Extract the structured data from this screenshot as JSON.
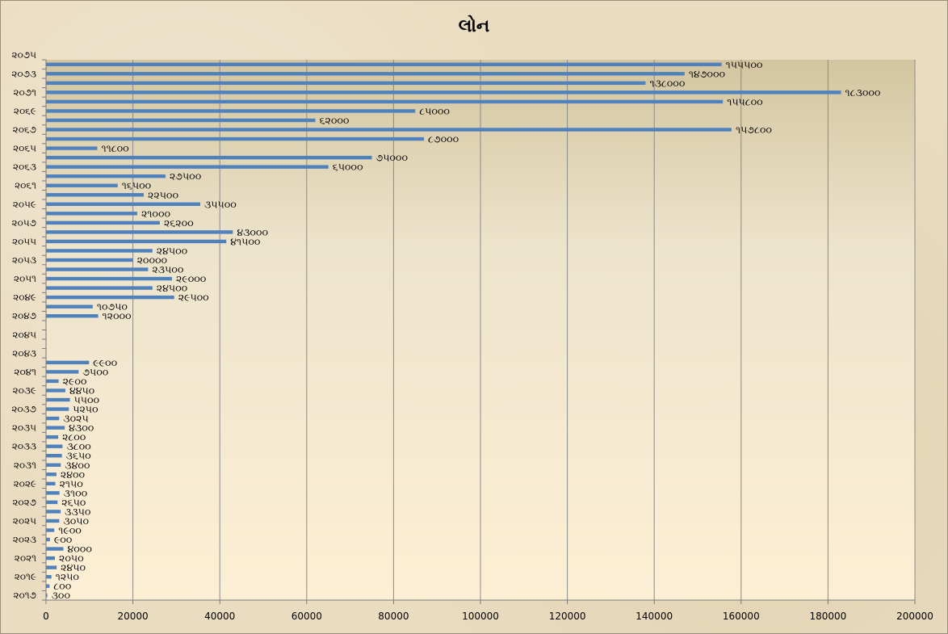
{
  "chart_data": {
    "type": "bar",
    "orientation": "horizontal",
    "title": "લોન",
    "xlim": [
      0,
      200000
    ],
    "x_tick_labels": [
      "0",
      "20000",
      "40000",
      "60000",
      "80000",
      "100000",
      "120000",
      "140000",
      "160000",
      "180000",
      "200000"
    ],
    "y_tick_labels": [
      "૨૦૧૭",
      "૨૦૧૯",
      "૨૦૨૧",
      "૨૦૨૩",
      "૨૦૨૫",
      "૨૦૨૭",
      "૨૦૨૯",
      "૨૦૩૧",
      "૨૦૩૩",
      "૨૦૩૫",
      "૨૦૩૭",
      "૨૦૩૯",
      "૨૦૪૧",
      "૨૦૪૩",
      "૨૦૪૫",
      "૨૦૪૭",
      "૨૦૪૯",
      "૨૦૫૧",
      "૨૦૫૩",
      "૨૦૫૫",
      "૨૦૫૭",
      "૨૦૫૯",
      "૨૦૬૧",
      "૨૦૬૩",
      "૨૦૬૫",
      "૨૦૬૭",
      "૨૦૬૯",
      "૨૦૭૧",
      "૨૦૭૩",
      "૨૦૭૫"
    ],
    "grid": "vertical",
    "bar_color": "#4f81bd",
    "series": [
      {
        "category": "૨૦૧૭",
        "value": 300,
        "label": "૩૦૦"
      },
      {
        "category": "૨૦૧૮",
        "value": 800,
        "label": "૮૦૦"
      },
      {
        "category": "૨૦૧૯",
        "value": 1250,
        "label": "૧૨૫૦"
      },
      {
        "category": "૨૦૨૦",
        "value": 2450,
        "label": "૨૪૫૦"
      },
      {
        "category": "૨૦૨૧",
        "value": 2050,
        "label": "૨૦૫૦"
      },
      {
        "category": "૨૦૨૨",
        "value": 4000,
        "label": "૪૦૦૦"
      },
      {
        "category": "૨૦૨૩",
        "value": 900,
        "label": "૯૦૦"
      },
      {
        "category": "૨૦૨૪",
        "value": 1900,
        "label": "૧૯૦૦"
      },
      {
        "category": "૨૦૨૫",
        "value": 3050,
        "label": "૩૦૫૦"
      },
      {
        "category": "૨૦૨૬",
        "value": 3350,
        "label": "૩૩૫૦"
      },
      {
        "category": "૨૦૨૭",
        "value": 2650,
        "label": "૨૬૫૦"
      },
      {
        "category": "૨૦૨૮",
        "value": 3100,
        "label": "૩૧૦૦"
      },
      {
        "category": "૨૦૨૯",
        "value": 2150,
        "label": "૨૧૫૦"
      },
      {
        "category": "૨૦૩૦",
        "value": 2400,
        "label": "૨૪૦૦"
      },
      {
        "category": "૨૦૩૧",
        "value": 3400,
        "label": "૩૪૦૦"
      },
      {
        "category": "૨૦૩૨",
        "value": 3650,
        "label": "૩૬૫૦"
      },
      {
        "category": "૨૦૩૩",
        "value": 3800,
        "label": "૩૮૦૦"
      },
      {
        "category": "૨૦૩૪",
        "value": 2800,
        "label": "૨૮૦૦"
      },
      {
        "category": "૨૦૩૫",
        "value": 4300,
        "label": "૪૩૦૦"
      },
      {
        "category": "૨૦૩૬",
        "value": 3025,
        "label": "૩૦૨૫"
      },
      {
        "category": "૨૦૩૭",
        "value": 5250,
        "label": "૫૨૫૦"
      },
      {
        "category": "૨૦૩૮",
        "value": 5500,
        "label": "૫૫૦૦"
      },
      {
        "category": "૨૦૩૯",
        "value": 4450,
        "label": "૪૪૫૦"
      },
      {
        "category": "૨૦૪૦",
        "value": 2900,
        "label": "૨૯૦૦"
      },
      {
        "category": "૨૦૪૧",
        "value": 7500,
        "label": "૭૫૦૦"
      },
      {
        "category": "૨૦૪૨",
        "value": 9900,
        "label": "૯૯૦૦"
      },
      {
        "category": "૨૦૪૩",
        "value": 0,
        "label": ""
      },
      {
        "category": "૨૦૪૪",
        "value": 0,
        "label": ""
      },
      {
        "category": "૨૦૪૫",
        "value": 0,
        "label": ""
      },
      {
        "category": "૨૦૪૬",
        "value": 0,
        "label": ""
      },
      {
        "category": "૨૦૪૭",
        "value": 12000,
        "label": "૧૨૦૦૦"
      },
      {
        "category": "૨૦૪૮",
        "value": 10750,
        "label": "૧૦૭૫૦"
      },
      {
        "category": "૨૦૪૯",
        "value": 29500,
        "label": "૨૯૫૦૦"
      },
      {
        "category": "૨૦૫૦",
        "value": 24500,
        "label": "૨૪૫૦૦"
      },
      {
        "category": "૨૦૫૧",
        "value": 29000,
        "label": "૨૯૦૦૦"
      },
      {
        "category": "૨૦૫૨",
        "value": 23500,
        "label": "૨૩૫૦૦"
      },
      {
        "category": "૨૦૫૩",
        "value": 20000,
        "label": "૨૦૦૦૦"
      },
      {
        "category": "૨૦૫૪",
        "value": 24500,
        "label": "૨૪૫૦૦"
      },
      {
        "category": "૨૦૫૫",
        "value": 41500,
        "label": "૪૧૫૦૦"
      },
      {
        "category": "૨૦૫૬",
        "value": 43000,
        "label": "૪૩૦૦૦"
      },
      {
        "category": "૨૦૫૭",
        "value": 26200,
        "label": "૨૬૨૦૦"
      },
      {
        "category": "૨૦૫૮",
        "value": 21000,
        "label": "૨૧૦૦૦"
      },
      {
        "category": "૨૦૫૯",
        "value": 35500,
        "label": "૩૫૫૦૦"
      },
      {
        "category": "૨૦૬૦",
        "value": 22500,
        "label": "૨૨૫૦૦"
      },
      {
        "category": "૨૦૬૧",
        "value": 16500,
        "label": "૧૬૫૦૦"
      },
      {
        "category": "૨૦૬૨",
        "value": 27500,
        "label": "૨૭૫૦૦"
      },
      {
        "category": "૨૦૬૩",
        "value": 65000,
        "label": "૬૫૦૦૦"
      },
      {
        "category": "૨૦૬૪",
        "value": 75000,
        "label": "૭૫૦૦૦"
      },
      {
        "category": "૨૦૬૫",
        "value": 11800,
        "label": "૧૧૮૦૦"
      },
      {
        "category": "૨૦૬૬",
        "value": 87000,
        "label": "૮૭૦૦૦"
      },
      {
        "category": "૨૦૬૭",
        "value": 157800,
        "label": "૧૫૭૮૦૦"
      },
      {
        "category": "૨૦૬૮",
        "value": 62000,
        "label": "૬૨૦૦૦"
      },
      {
        "category": "૨૦૬૯",
        "value": 85000,
        "label": "૮૫૦૦૦"
      },
      {
        "category": "૨૦૭૦",
        "value": 155800,
        "label": "૧૫૫૮૦૦"
      },
      {
        "category": "૨૦૭૧",
        "value": 183000,
        "label": "૧૮૩૦૦૦"
      },
      {
        "category": "૨૦૭૨",
        "value": 138000,
        "label": "૧૩૮૦૦૦"
      },
      {
        "category": "૨૦૭૩",
        "value": 147000,
        "label": "૧૪૭૦૦૦"
      },
      {
        "category": "૨૦૭૪",
        "value": 155500,
        "label": "૧૫૫૫૦૦"
      }
    ]
  }
}
